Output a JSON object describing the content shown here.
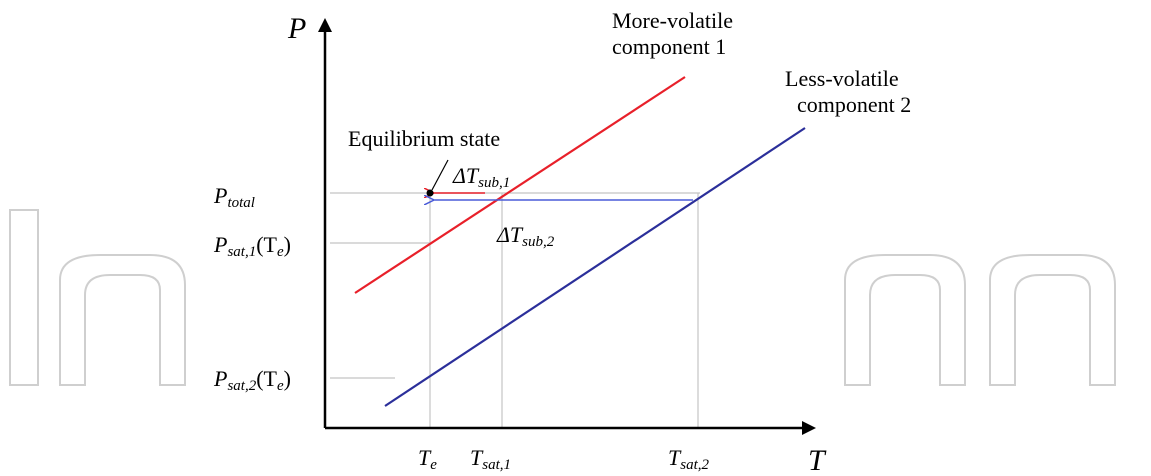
{
  "axes": {
    "y_label": "P",
    "x_label": "T"
  },
  "lines": {
    "component_1": {
      "label_line1": "More-volatile",
      "label_line2": "component 1",
      "color": "#e8202a"
    },
    "component_2": {
      "label_line1": "Less-volatile",
      "label_line2": "component 2",
      "color": "#2b2f9a"
    }
  },
  "equilibrium": {
    "label": "Equilibrium state"
  },
  "deltas": {
    "sub1": {
      "main": "ΔT",
      "sub": "sub,1",
      "color": "#e8202a"
    },
    "sub2": {
      "main": "ΔT",
      "sub": "sub,2",
      "color": "#4a5bd8"
    }
  },
  "y_ticks": {
    "p_total": {
      "main": "P",
      "sub": "total"
    },
    "p_sat1": {
      "main": "P",
      "sub": "sat,1",
      "tail": "(T",
      "tail_sub": "e",
      "close": ")"
    },
    "p_sat2": {
      "main": "P",
      "sub": "sat,2",
      "tail": "(T",
      "tail_sub": "e",
      "close": ")"
    }
  },
  "x_ticks": {
    "te": {
      "main": "T",
      "sub": "e"
    },
    "tsat1": {
      "main": "T",
      "sub": "sat,1"
    },
    "tsat2": {
      "main": "T",
      "sub": "sat,2"
    }
  },
  "watermark": {
    "text": "IntechOpen",
    "color": "#c8c8c8"
  }
}
